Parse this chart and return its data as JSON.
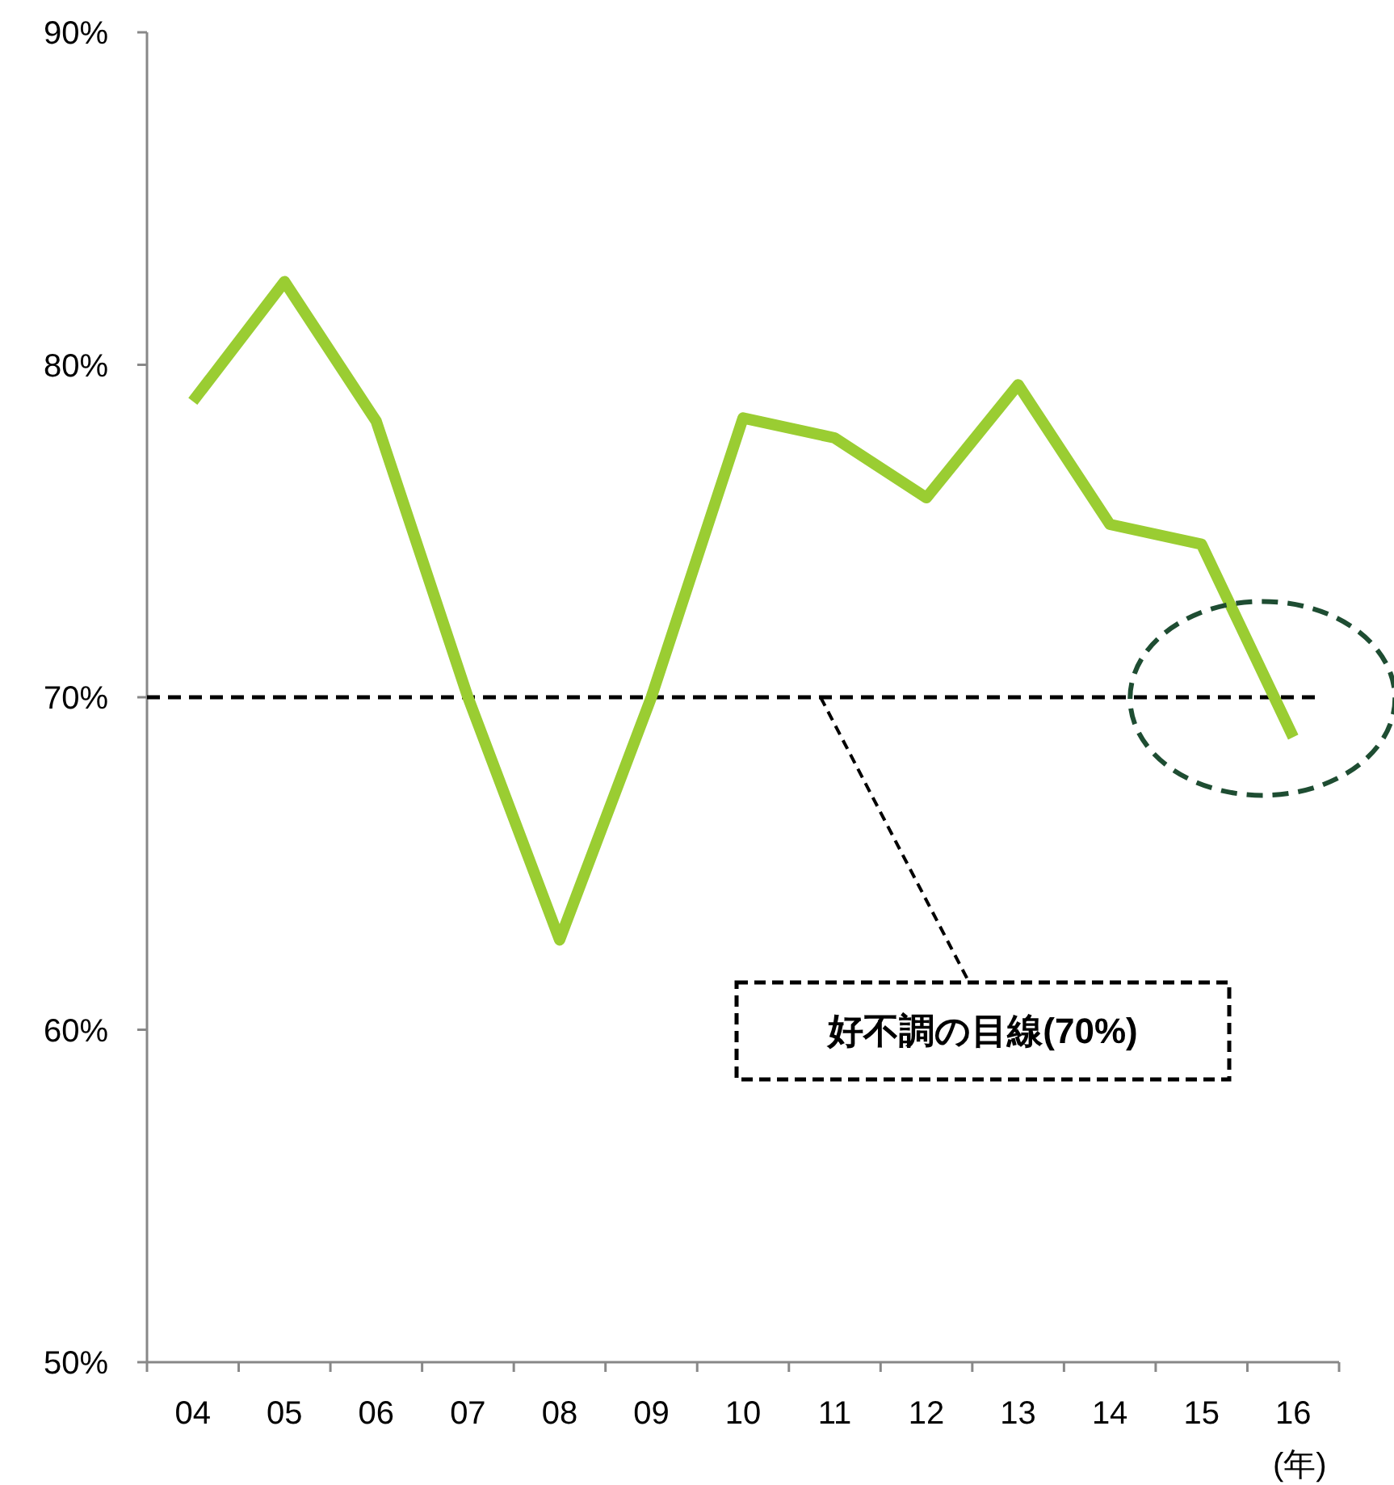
{
  "chart_data": {
    "type": "line",
    "xlabel": "(年)",
    "categories": [
      "04",
      "05",
      "06",
      "07",
      "08",
      "09",
      "10",
      "11",
      "12",
      "13",
      "14",
      "15",
      "16"
    ],
    "series": [
      {
        "color": "#9acd32",
        "values": [
          78.9,
          82.5,
          78.3,
          70.0,
          62.7,
          70.0,
          78.4,
          77.8,
          76.0,
          79.4,
          75.2,
          74.6,
          68.8
        ]
      }
    ],
    "ylim": [
      50,
      90
    ],
    "yticks": [
      {
        "value": 50,
        "label": "50%"
      },
      {
        "value": 60,
        "label": "60%"
      },
      {
        "value": 70,
        "label": "70%"
      },
      {
        "value": 80,
        "label": "80%"
      },
      {
        "value": 90,
        "label": "90%"
      }
    ],
    "ref_lines": [
      {
        "axis": "y",
        "value": 70,
        "label": "好不調の目線(70%)",
        "color": "#000000",
        "line_style": "dashed"
      }
    ],
    "grid": false,
    "marker": "none",
    "line_style": "solid"
  }
}
